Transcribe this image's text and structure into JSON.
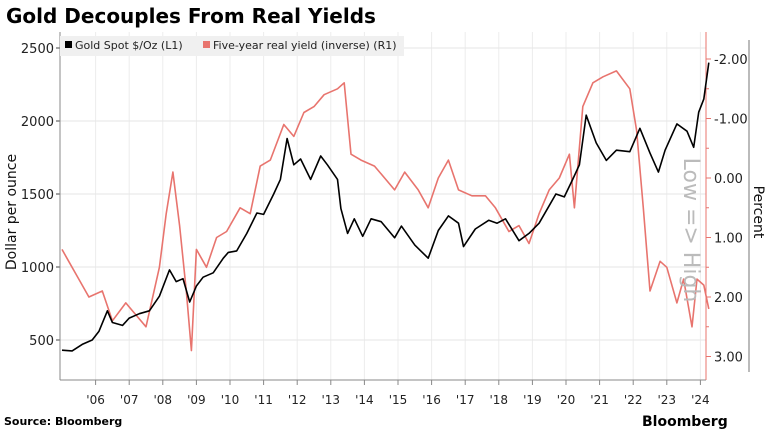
{
  "chart_data": {
    "type": "line",
    "title": "Gold Decouples From Real Yields",
    "ylabel_left": "Dollar per ounce",
    "ylabel_right": "Percent",
    "annotation": "Low => High",
    "source": "Source: Bloomberg",
    "brand": "Bloomberg",
    "x_tick_labels": [
      "'06",
      "'07",
      "'08",
      "'09",
      "'10",
      "'11",
      "'12",
      "'13",
      "'14",
      "'15",
      "'16",
      "'17",
      "'18",
      "'19",
      "'20",
      "'21",
      "'22",
      "'23",
      "'24"
    ],
    "x_ticks": [
      2006,
      2007,
      2008,
      2009,
      2010,
      2011,
      2012,
      2013,
      2014,
      2015,
      2016,
      2017,
      2018,
      2019,
      2020,
      2021,
      2022,
      2023,
      2024
    ],
    "y_left_ticks": [
      500,
      1000,
      1500,
      2000,
      2500
    ],
    "y_left_tick_labels": [
      "500",
      "1000",
      "1500",
      "2000",
      "2500"
    ],
    "y_right_ticks": [
      -2,
      -1,
      0,
      1,
      2,
      3
    ],
    "y_right_tick_labels": [
      "-2.00",
      "-1.00",
      "0.00",
      "1.00",
      "2.00",
      "3.00"
    ],
    "y_right_inverted": true,
    "xlim": [
      2005,
      2024.3
    ],
    "ylim_left": [
      300,
      2580
    ],
    "ylim_right": [
      -2.2,
      3.4
    ],
    "grid": true,
    "legend_position": "top-left",
    "series": [
      {
        "name": "Gold Spot $/Oz  (L1)",
        "axis": "left",
        "color": "#000000",
        "x": [
          2005.0,
          2005.3,
          2005.6,
          2005.9,
          2006.1,
          2006.35,
          2006.5,
          2006.8,
          2007.0,
          2007.3,
          2007.6,
          2007.9,
          2008.2,
          2008.4,
          2008.6,
          2008.8,
          2009.0,
          2009.2,
          2009.5,
          2009.8,
          2009.95,
          2010.2,
          2010.5,
          2010.8,
          2011.0,
          2011.3,
          2011.5,
          2011.7,
          2011.9,
          2012.1,
          2012.4,
          2012.7,
          2012.9,
          2013.2,
          2013.3,
          2013.5,
          2013.7,
          2013.95,
          2014.2,
          2014.5,
          2014.9,
          2015.1,
          2015.5,
          2015.9,
          2016.2,
          2016.5,
          2016.8,
          2016.95,
          2017.3,
          2017.7,
          2017.95,
          2018.2,
          2018.6,
          2018.9,
          2019.2,
          2019.5,
          2019.7,
          2019.95,
          2020.2,
          2020.4,
          2020.6,
          2020.9,
          2021.2,
          2021.5,
          2021.9,
          2022.2,
          2022.5,
          2022.75,
          2022.95,
          2023.3,
          2023.6,
          2023.8,
          2023.95,
          2024.1,
          2024.25
        ],
        "values": [
          430,
          425,
          470,
          500,
          560,
          700,
          620,
          600,
          650,
          680,
          700,
          800,
          980,
          900,
          920,
          760,
          870,
          930,
          960,
          1060,
          1100,
          1110,
          1230,
          1370,
          1360,
          1500,
          1600,
          1880,
          1700,
          1740,
          1600,
          1760,
          1700,
          1600,
          1400,
          1230,
          1330,
          1210,
          1330,
          1310,
          1200,
          1280,
          1150,
          1060,
          1250,
          1350,
          1300,
          1140,
          1260,
          1320,
          1300,
          1330,
          1180,
          1230,
          1300,
          1420,
          1500,
          1480,
          1600,
          1700,
          2040,
          1850,
          1730,
          1800,
          1790,
          1950,
          1780,
          1650,
          1800,
          1980,
          1930,
          1820,
          2060,
          2150,
          2400
        ]
      },
      {
        "name": "Five-year real yield (inverse) (R1)",
        "axis": "right",
        "color": "#e8746e",
        "x": [
          2005.0,
          2005.2,
          2005.5,
          2005.8,
          2006.2,
          2006.5,
          2006.9,
          2007.2,
          2007.5,
          2007.9,
          2008.1,
          2008.3,
          2008.5,
          2008.7,
          2008.85,
          2009.0,
          2009.3,
          2009.6,
          2009.9,
          2010.3,
          2010.6,
          2010.9,
          2011.2,
          2011.6,
          2011.9,
          2012.2,
          2012.5,
          2012.8,
          2013.2,
          2013.4,
          2013.6,
          2013.9,
          2014.3,
          2014.6,
          2014.9,
          2015.2,
          2015.6,
          2015.9,
          2016.2,
          2016.5,
          2016.8,
          2017.2,
          2017.6,
          2017.9,
          2018.3,
          2018.6,
          2018.9,
          2019.2,
          2019.5,
          2019.8,
          2020.1,
          2020.25,
          2020.5,
          2020.8,
          2021.1,
          2021.5,
          2021.9,
          2022.1,
          2022.3,
          2022.5,
          2022.8,
          2023.0,
          2023.3,
          2023.5,
          2023.75,
          2023.9,
          2024.1,
          2024.25
        ],
        "values": [
          1.2,
          1.4,
          1.7,
          2.0,
          1.9,
          2.4,
          2.1,
          2.3,
          2.5,
          1.5,
          0.6,
          -0.1,
          0.8,
          1.9,
          2.9,
          1.2,
          1.5,
          1.0,
          0.9,
          0.5,
          0.6,
          -0.2,
          -0.3,
          -0.9,
          -0.7,
          -1.1,
          -1.2,
          -1.4,
          -1.5,
          -1.6,
          -0.4,
          -0.3,
          -0.2,
          0.0,
          0.2,
          -0.1,
          0.2,
          0.5,
          0.0,
          -0.3,
          0.2,
          0.3,
          0.3,
          0.5,
          0.9,
          0.8,
          1.1,
          0.6,
          0.2,
          0.0,
          -0.4,
          0.5,
          -1.2,
          -1.6,
          -1.7,
          -1.8,
          -1.5,
          -0.8,
          0.5,
          1.9,
          1.4,
          1.5,
          2.1,
          1.7,
          2.5,
          1.7,
          1.8,
          2.2
        ]
      }
    ]
  }
}
